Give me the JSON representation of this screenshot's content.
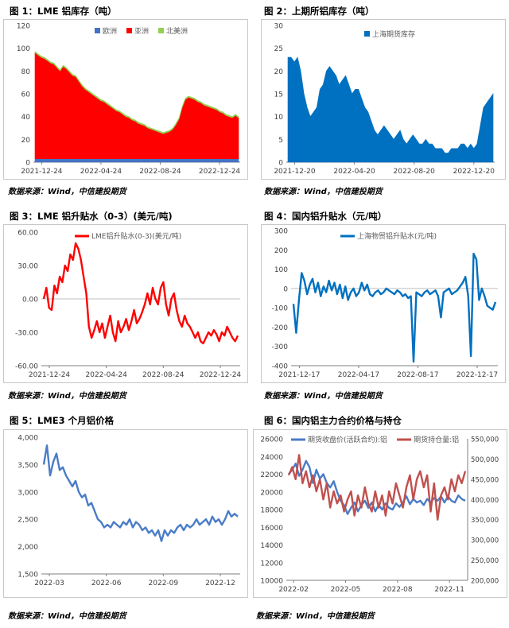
{
  "sources": [
    "数据来源：Wind，中信建投期货",
    "数据来源：Wind，中信建投期货",
    "数据来源：Wind，中信建投期货",
    "数据来源：Wind，中信建投期货",
    "数据来源：Wind，中信建投期货",
    "数据来源：Wind，中信建投期货"
  ],
  "chart_data": [
    {
      "title": "图 1：LME 铝库存（吨）",
      "type": "area",
      "stacked": true,
      "ylim": [
        0,
        120
      ],
      "yticks": [
        "0",
        "20",
        "40",
        "60",
        "80",
        "100",
        "120"
      ],
      "xticks": [
        "2021-12-24",
        "2022-04-24",
        "2022-08-24",
        "2022-12-24"
      ],
      "legend_position": "top",
      "series": [
        {
          "name": "欧洲",
          "color": "#4472c4",
          "values": [
            3,
            3,
            3,
            3,
            3,
            3,
            3,
            3,
            3,
            3,
            3,
            3,
            3,
            3,
            3,
            3,
            3,
            3,
            3,
            3,
            3,
            3,
            3,
            3,
            3,
            3,
            3,
            3,
            3,
            3,
            3,
            3,
            3,
            3,
            3,
            3,
            3,
            3,
            3,
            3,
            3,
            3,
            3,
            3,
            3,
            3,
            3,
            3,
            3,
            3,
            3,
            3,
            3,
            3,
            3,
            3,
            3,
            3,
            3,
            3,
            3,
            3,
            3,
            3,
            3,
            3
          ]
        },
        {
          "name": "亚洲",
          "color": "#ff0000",
          "values": [
            93,
            91,
            89,
            88,
            86,
            84,
            83,
            80,
            77,
            81,
            79,
            76,
            73,
            72,
            68,
            64,
            61,
            59,
            57,
            55,
            53,
            51,
            50,
            48,
            46,
            44,
            42,
            41,
            39,
            37,
            36,
            34,
            33,
            31,
            30,
            29,
            27,
            26,
            25,
            24,
            23,
            22,
            23,
            24,
            26,
            30,
            35,
            45,
            52,
            54,
            53,
            52,
            50,
            49,
            47,
            46,
            45,
            44,
            43,
            41,
            40,
            38,
            37,
            36,
            38,
            36
          ]
        },
        {
          "name": "北美洲",
          "color": "#92d050",
          "values": [
            1,
            1,
            1,
            1,
            1,
            1,
            1,
            1,
            1,
            1,
            1,
            1,
            1,
            1,
            1,
            1,
            1,
            1,
            1,
            1,
            1,
            1,
            1,
            1,
            1,
            1,
            1,
            1,
            1,
            1,
            1,
            1,
            1,
            1,
            1,
            1,
            1,
            1,
            1,
            1,
            1,
            1,
            1,
            1,
            1,
            1,
            1,
            1,
            1,
            1,
            1,
            1,
            1,
            1,
            1,
            1,
            1,
            1,
            1,
            1,
            1,
            1,
            1,
            1,
            1,
            1
          ]
        }
      ]
    },
    {
      "title": "图 2：上期所铝库存（吨）",
      "type": "area",
      "ylim": [
        0,
        30
      ],
      "yticks": [
        "0",
        "5",
        "10",
        "15",
        "20",
        "25",
        "30"
      ],
      "xticks": [
        "2021-12-20",
        "2022-04-20",
        "2022-08-20",
        "2022-12-20"
      ],
      "legend_position": "top",
      "series": [
        {
          "name": "上海期货库存",
          "color": "#0070c0",
          "values": [
            23,
            23,
            22,
            23,
            20,
            15,
            12,
            10,
            11,
            12,
            16,
            17,
            20,
            21,
            20,
            19,
            17,
            18,
            19,
            17,
            15,
            16,
            16,
            14,
            12,
            11,
            9,
            7,
            6,
            7,
            8,
            7,
            6,
            5,
            6,
            7,
            5,
            4,
            5,
            6,
            5,
            4,
            4,
            5,
            4,
            4,
            3,
            3,
            3,
            2,
            2,
            3,
            3,
            3,
            4,
            4,
            3,
            4,
            3,
            4,
            8,
            12,
            13,
            14,
            15
          ]
        }
      ]
    },
    {
      "title": "图 3：LME 铝升贴水（0-3）(美元/吨)",
      "type": "line",
      "ylim": [
        -60,
        60
      ],
      "yticks": [
        "-60.00",
        "-30.00",
        "0.00",
        "30.00",
        "60.00"
      ],
      "xticks": [
        "2021-12-24",
        "2022-04-24",
        "2022-08-24",
        "2022-12-24"
      ],
      "legend_position": "top",
      "series": [
        {
          "name": "LME铝升贴水(0-3)(美元/吨)",
          "color": "#ff0000",
          "values": [
            0,
            10,
            -8,
            -10,
            12,
            5,
            20,
            15,
            30,
            25,
            40,
            35,
            50,
            45,
            35,
            20,
            5,
            -25,
            -35,
            -28,
            -20,
            -30,
            -22,
            -35,
            -25,
            -15,
            -30,
            -38,
            -20,
            -30,
            -25,
            -18,
            -28,
            -20,
            -10,
            -22,
            -18,
            -12,
            -5,
            5,
            -5,
            10,
            0,
            -5,
            10,
            15,
            -5,
            -15,
            0,
            5,
            -10,
            -20,
            -25,
            -15,
            -22,
            -25,
            -30,
            -35,
            -30,
            -38,
            -40,
            -35,
            -30,
            -33,
            -28,
            -32,
            -38,
            -30,
            -33,
            -25,
            -30,
            -35,
            -38,
            -33
          ]
        }
      ]
    },
    {
      "title": "图 4：国内铝升贴水（元/吨）",
      "type": "line",
      "ylim": [
        -400,
        300
      ],
      "yticks": [
        "-400",
        "-300",
        "-200",
        "-100",
        "0",
        "100",
        "200",
        "300"
      ],
      "xticks": [
        "2021-12-17",
        "2022-04-17",
        "2022-08-17",
        "2022-12-17"
      ],
      "legend_position": "top",
      "series": [
        {
          "name": "上海物贸铝升贴水(元/吨)",
          "color": "#0070c0",
          "values": [
            -80,
            -230,
            -60,
            80,
            40,
            -30,
            20,
            50,
            -20,
            30,
            -40,
            10,
            -20,
            40,
            -10,
            30,
            -30,
            20,
            -50,
            10,
            -60,
            -20,
            0,
            -40,
            -20,
            30,
            -10,
            20,
            -30,
            -40,
            -20,
            -10,
            -30,
            -20,
            0,
            -10,
            -20,
            -30,
            -10,
            -20,
            -40,
            -30,
            -50,
            -40,
            -380,
            -20,
            -30,
            -40,
            -20,
            -10,
            -30,
            -20,
            -10,
            -40,
            -150,
            -20,
            -10,
            0,
            -30,
            -20,
            -10,
            10,
            30,
            60,
            -40,
            -350,
            180,
            150,
            -60,
            0,
            -40,
            -90,
            -100,
            -110,
            -70
          ]
        }
      ]
    },
    {
      "title": "图 5：LME3 个月铝价格",
      "type": "line",
      "ylim": [
        1500,
        4000
      ],
      "yticks": [
        "1,500",
        "2,000",
        "2,500",
        "3,000",
        "3,500",
        "4,000"
      ],
      "xticks": [
        "2022-03",
        "2022-06",
        "2022-09",
        "2022-12"
      ],
      "series": [
        {
          "name": "",
          "color": "#4a7cc7",
          "values": [
            3500,
            3850,
            3300,
            3550,
            3700,
            3400,
            3450,
            3300,
            3200,
            3100,
            3200,
            3000,
            2900,
            2950,
            2750,
            2800,
            2650,
            2500,
            2450,
            2350,
            2400,
            2350,
            2450,
            2400,
            2350,
            2450,
            2400,
            2500,
            2350,
            2450,
            2400,
            2300,
            2350,
            2250,
            2300,
            2200,
            2300,
            2100,
            2300,
            2200,
            2300,
            2250,
            2350,
            2400,
            2300,
            2400,
            2350,
            2400,
            2500,
            2400,
            2450,
            2500,
            2400,
            2550,
            2450,
            2500,
            2400,
            2500,
            2650,
            2550,
            2600,
            2550
          ]
        }
      ]
    },
    {
      "title": "图 6：国内铝主力合约价格与持仓",
      "type": "line",
      "dual_axis": true,
      "ylim": [
        10000,
        26000
      ],
      "yticks": [
        "10000",
        "12000",
        "14000",
        "16000",
        "18000",
        "20000",
        "22000",
        "24000",
        "26000"
      ],
      "y2lim": [
        200000,
        550000
      ],
      "y2ticks": [
        "200,000",
        "250,000",
        "300,000",
        "350,000",
        "400,000",
        "450,000",
        "500,000",
        "550,000"
      ],
      "xticks": [
        "2022-02",
        "2022-05",
        "2022-08",
        "2022-11"
      ],
      "legend_position": "top",
      "series": [
        {
          "name": "期货收盘价(活跃合约):铝",
          "color": "#4a7cc7",
          "axis": "left",
          "values": [
            22000,
            22500,
            23200,
            21800,
            22500,
            23500,
            22800,
            21000,
            22500,
            21500,
            22000,
            21000,
            20500,
            21200,
            20000,
            19000,
            18500,
            17500,
            18200,
            18800,
            17800,
            18500,
            19000,
            18200,
            18800,
            17800,
            18500,
            18000,
            18700,
            18200,
            18000,
            18700,
            18300,
            18800,
            19500,
            18600,
            19200,
            18800,
            19000,
            18500,
            19200,
            18800,
            19300,
            19000,
            19500,
            18800,
            19500,
            19000,
            18800,
            19600,
            19200,
            19000
          ]
        },
        {
          "name": "期货持仓量:铝",
          "color": "#c0504d",
          "axis": "right",
          "values": [
            460000,
            480000,
            450000,
            510000,
            440000,
            470000,
            430000,
            460000,
            420000,
            450000,
            400000,
            440000,
            380000,
            420000,
            390000,
            410000,
            370000,
            400000,
            420000,
            360000,
            410000,
            380000,
            430000,
            390000,
            370000,
            420000,
            380000,
            410000,
            360000,
            420000,
            390000,
            440000,
            410000,
            380000,
            430000,
            460000,
            400000,
            450000,
            470000,
            430000,
            460000,
            370000,
            440000,
            350000,
            410000,
            430000,
            400000,
            450000,
            420000,
            460000,
            440000,
            470000
          ]
        }
      ]
    }
  ]
}
